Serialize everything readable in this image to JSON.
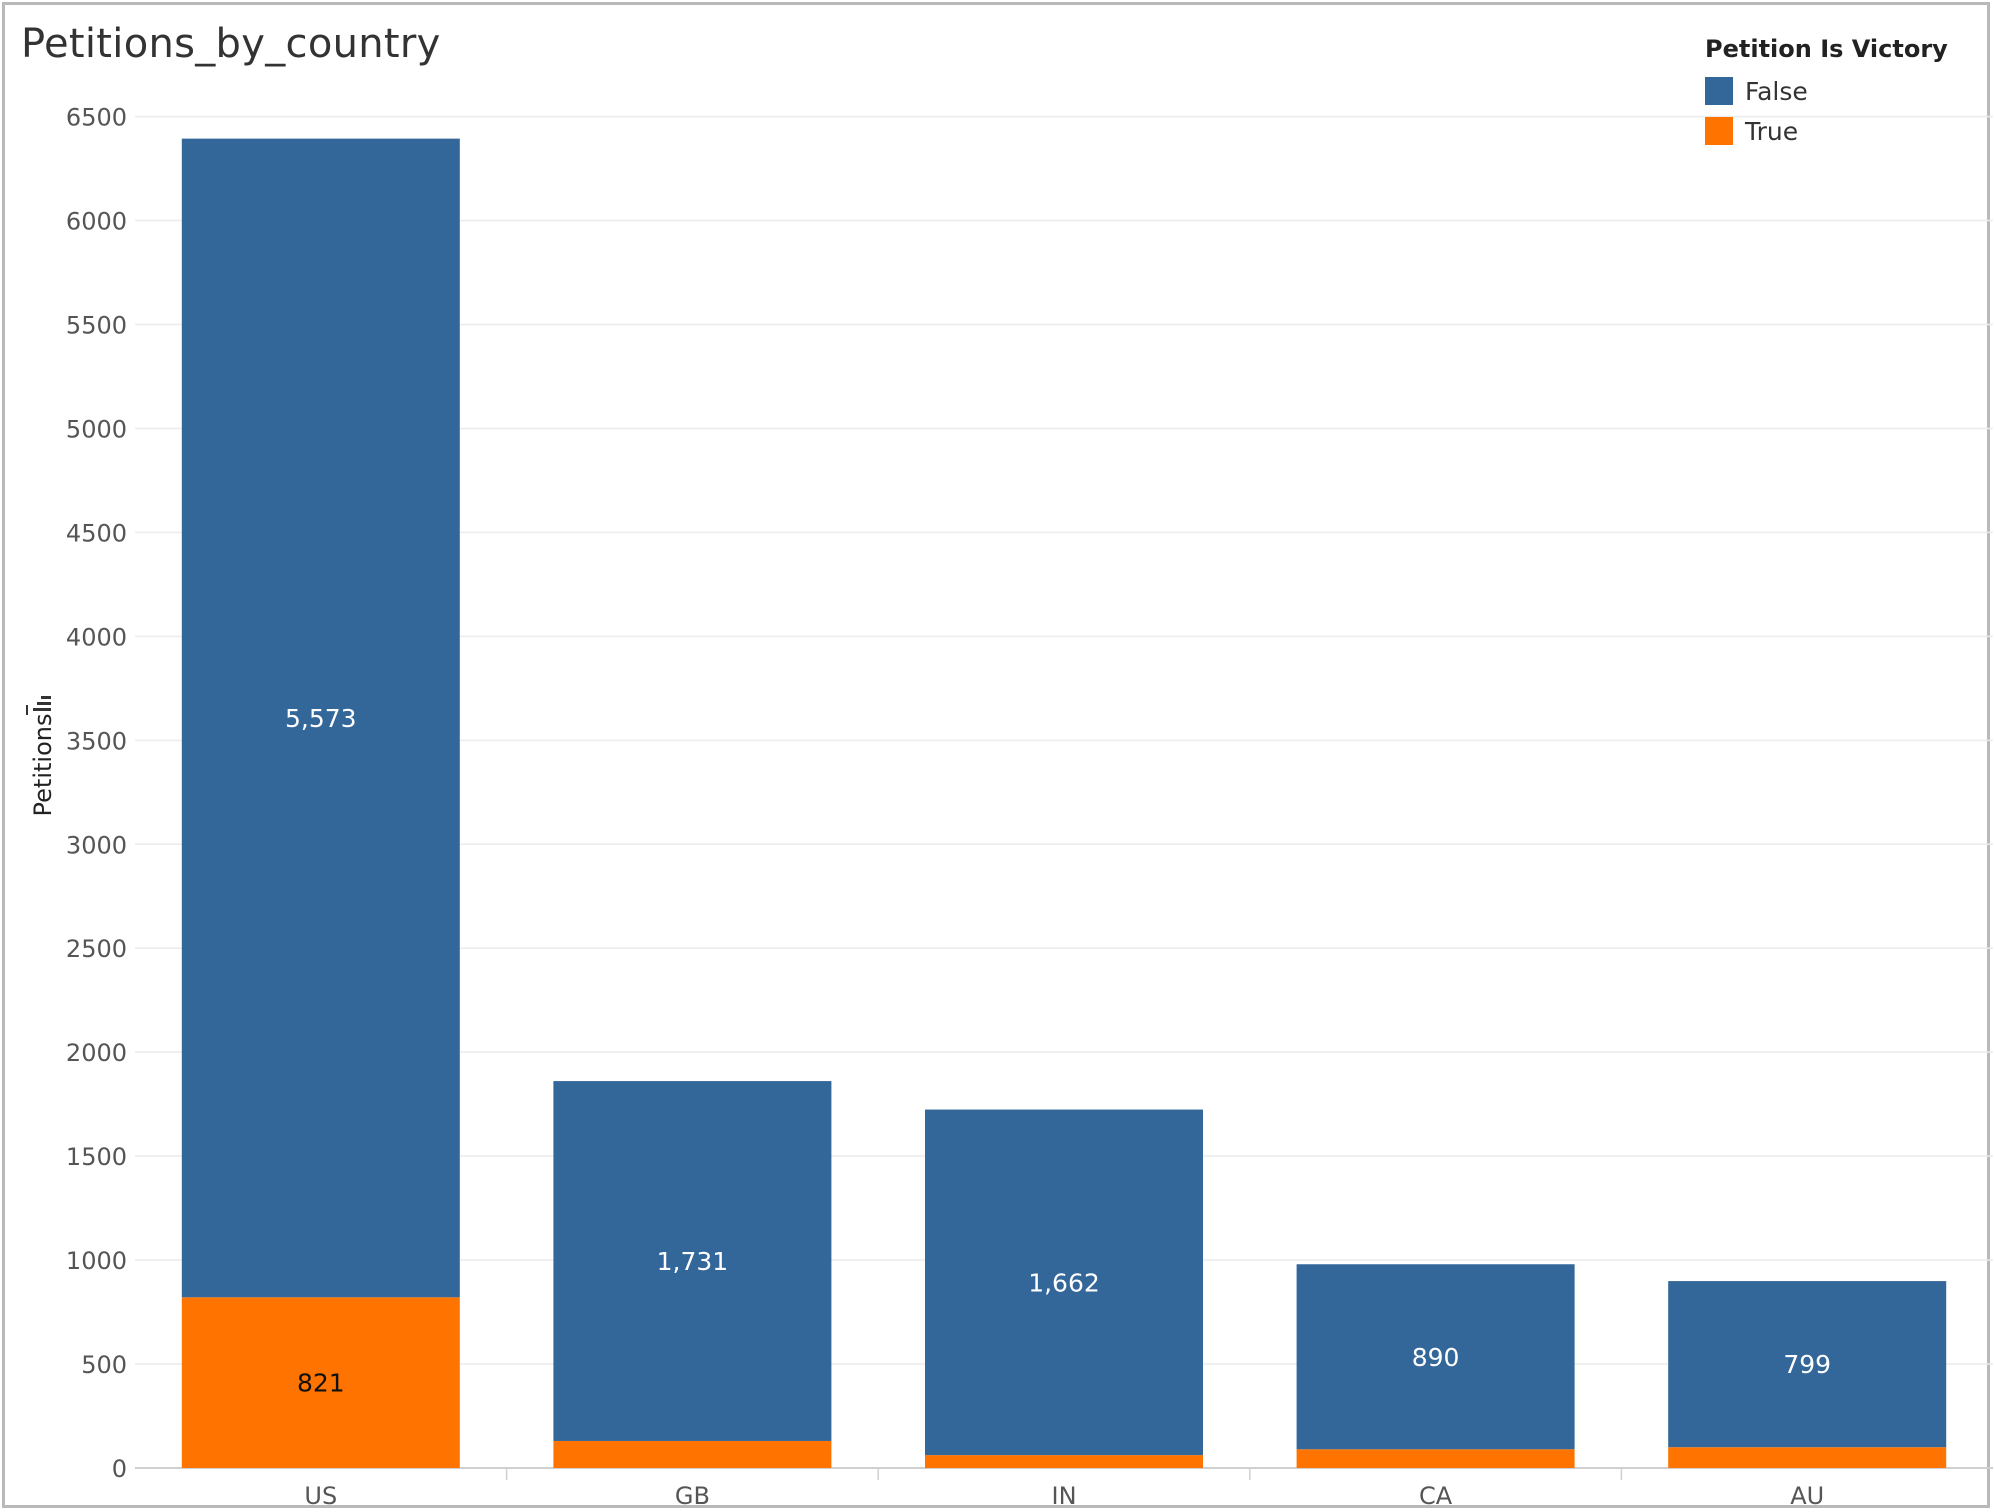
{
  "chart_data": {
    "type": "bar",
    "stacked": true,
    "title": "Petitions_by_country",
    "xlabel": "",
    "ylabel": "Petitions",
    "categories": [
      "US",
      "GB",
      "IN",
      "CA",
      "AU"
    ],
    "series": [
      {
        "name": "True",
        "color": "#ff7400",
        "values": [
          821,
          130,
          62,
          90,
          100
        ],
        "labels": [
          "821",
          "",
          "",
          "",
          ""
        ]
      },
      {
        "name": "False",
        "color": "#336699",
        "values": [
          5573,
          1731,
          1662,
          890,
          799
        ],
        "labels": [
          "5,573",
          "1,731",
          "1,662",
          "890",
          "799"
        ]
      }
    ],
    "ylim": [
      0,
      6700
    ],
    "yticks": [
      0,
      500,
      1000,
      1500,
      2000,
      2500,
      3000,
      3500,
      4000,
      4500,
      5000,
      5500,
      6000,
      6500
    ],
    "grid": true,
    "legend": {
      "title": "Petition Is Victory",
      "position": "top-right",
      "entries": [
        {
          "label": "False",
          "color": "#336699"
        },
        {
          "label": "True",
          "color": "#ff7400"
        }
      ]
    }
  }
}
